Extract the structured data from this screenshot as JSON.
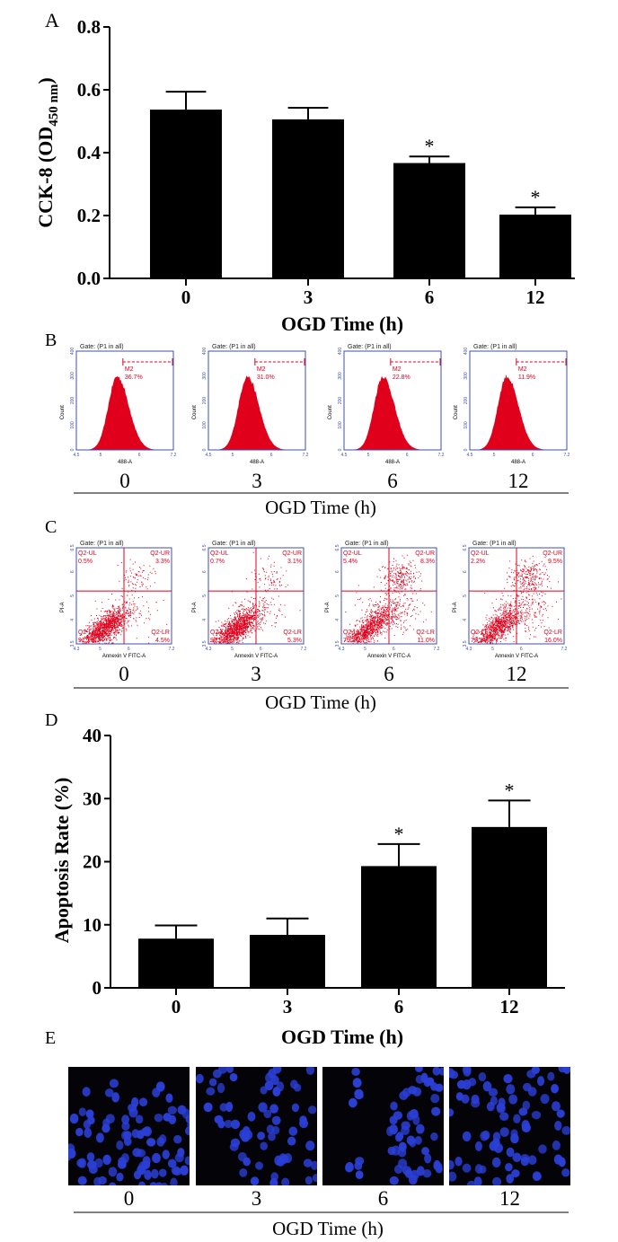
{
  "panel_labels": {
    "a": "A",
    "b": "B",
    "c": "C",
    "d": "D",
    "e": "E"
  },
  "colors": {
    "bar": "#000000",
    "flow": "#e0001b",
    "flow_axis": "#3f4fb0",
    "nuclei": "#2b3fd6",
    "micro_bg": "#040408"
  },
  "chart_data": [
    {
      "type": "bar",
      "panel": "A",
      "categories": [
        "0",
        "3",
        "6",
        "12"
      ],
      "values": [
        0.537,
        0.506,
        0.367,
        0.203
      ],
      "error_upper": [
        0.594,
        0.543,
        0.388,
        0.226
      ],
      "significance": [
        "",
        "",
        "*",
        "*"
      ],
      "xlabel": "OGD Time (h)",
      "ylabel_main": "CCK-8 (OD",
      "ylabel_sub": "450 nm",
      "ylabel_end": ")",
      "ylim": [
        0,
        0.8
      ],
      "yticks": [
        "0.0",
        "0.2",
        "0.4",
        "0.6",
        "0.8"
      ],
      "ytick_values": [
        0,
        0.2,
        0.4,
        0.6,
        0.8
      ],
      "grid": false
    },
    {
      "type": "bar",
      "panel": "D",
      "categories": [
        "0",
        "3",
        "6",
        "12"
      ],
      "values": [
        7.8,
        8.4,
        19.3,
        25.5
      ],
      "error_upper": [
        9.9,
        11.0,
        22.8,
        29.7
      ],
      "significance": [
        "",
        "",
        "*",
        "*"
      ],
      "xlabel": "OGD Time (h)",
      "ylabel": "Apoptosis Rate (%)",
      "ylim": [
        0,
        40
      ],
      "yticks": [
        "0",
        "10",
        "20",
        "30",
        "40"
      ],
      "ytick_values": [
        0,
        10,
        20,
        30,
        40
      ],
      "grid": false
    }
  ],
  "flow_histograms": {
    "gate_title": "Gate: (P1 in all)",
    "ylabel": "Count",
    "xlabel": "488-A",
    "yticks": [
      "0",
      "100",
      "200",
      "300",
      "400"
    ],
    "xticks": [
      "4.5",
      "5",
      "6",
      "7.2"
    ],
    "marker": "M2",
    "panels": [
      {
        "time": "0",
        "percent": "36.7%"
      },
      {
        "time": "3",
        "percent": "31.0%"
      },
      {
        "time": "6",
        "percent": "22.8%"
      },
      {
        "time": "12",
        "percent": "11.9%"
      }
    ],
    "axis_title": "OGD Time (h)"
  },
  "flow_scatter": {
    "gate_title": "Gate: (P1 in all)",
    "ylabel": "PI-A",
    "xlabel": "Annexin V FITC-A",
    "xticks": [
      "4.3",
      "5",
      "6",
      "7.2"
    ],
    "yticks": [
      "3.5",
      "4",
      "5",
      "6",
      "6.5"
    ],
    "quadrants": {
      "ul": "Q2-UL",
      "ur": "Q2-UR",
      "ll": "Q2-LL",
      "lr": "Q2-LR"
    },
    "panels": [
      {
        "time": "0",
        "ul": "0.5%",
        "ur": "3.3%",
        "ll": "91.2%",
        "lr": "4.5%"
      },
      {
        "time": "3",
        "ul": "0.7%",
        "ur": "3.1%",
        "ll": "90.9%",
        "lr": "5.3%"
      },
      {
        "time": "6",
        "ul": "5.4%",
        "ur": "8.3%",
        "ll": "75.3%",
        "lr": "11.0%"
      },
      {
        "time": "12",
        "ul": "2.2%",
        "ur": "9.5%",
        "ll": "72.3%",
        "lr": "16.0%"
      }
    ],
    "axis_title": "OGD Time (h)"
  },
  "microscopy": {
    "panels": [
      {
        "time": "0",
        "cells": 95
      },
      {
        "time": "3",
        "cells": 75
      },
      {
        "time": "6",
        "cells": 60
      },
      {
        "time": "12",
        "cells": 80
      }
    ],
    "axis_title": "OGD Time (h)"
  }
}
